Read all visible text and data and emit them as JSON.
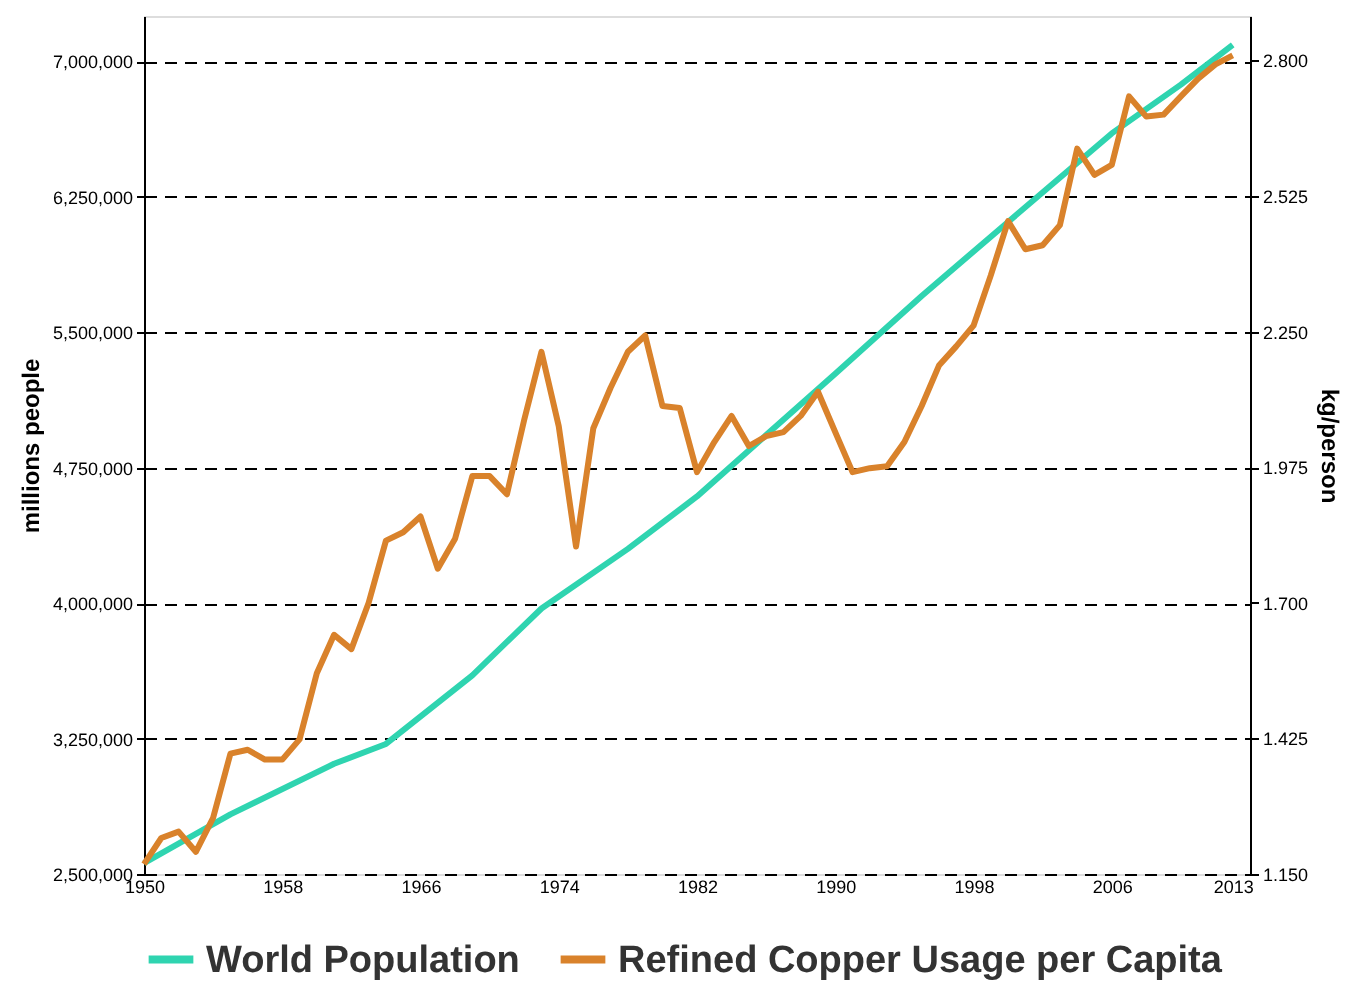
{
  "chart_data": {
    "type": "line",
    "ylabel": "millions people",
    "y2label": "kg/person",
    "xlim": [
      1950,
      2014
    ],
    "xticks": [
      1950,
      1958,
      1966,
      1974,
      1982,
      1990,
      1998,
      2006,
      2013
    ],
    "ylim": [
      2500000,
      7250000
    ],
    "yticks": [
      {
        "value": 2500000,
        "label": "2,500,000"
      },
      {
        "value": 3250000,
        "label": "3,250,000"
      },
      {
        "value": 4000000,
        "label": "4,000,000"
      },
      {
        "value": 4750000,
        "label": "4,750,000"
      },
      {
        "value": 5500000,
        "label": "5,500,000"
      },
      {
        "value": 6250000,
        "label": "6,250,000"
      },
      {
        "value": 7000000,
        "label": "7,000,000"
      }
    ],
    "y2lim": [
      1.15,
      2.89
    ],
    "y2ticks": [
      {
        "value": 1.15,
        "label": "1.150"
      },
      {
        "value": 1.425,
        "label": "1.425"
      },
      {
        "value": 1.7,
        "label": "1.700"
      },
      {
        "value": 1.975,
        "label": "1.975"
      },
      {
        "value": 2.25,
        "label": "2.250"
      },
      {
        "value": 2.525,
        "label": "2.525"
      },
      {
        "value": 2.8,
        "label": "2.800"
      }
    ],
    "grid": "y",
    "line_style": "solid",
    "marker": "none",
    "legend": "bottom",
    "series": [
      {
        "name": "World Population",
        "color": "#2fd4b0",
        "x": [
          1950,
          1955,
          1961,
          1964,
          1969,
          1973,
          1978,
          1982,
          1986,
          1990,
          1995,
          2000,
          2006,
          2010,
          2013
        ],
        "values": [
          2560000,
          2830000,
          3110000,
          3220000,
          3600000,
          3970000,
          4300000,
          4590000,
          4930000,
          5270000,
          5700000,
          6110000,
          6600000,
          6870000,
          7090000
        ]
      },
      {
        "name": "Refined Copper Usage per Capita",
        "color": "#d9822b",
        "axis": "y2",
        "x": [
          1950,
          1951,
          1952,
          1953,
          1954,
          1955,
          1956,
          1957,
          1958,
          1959,
          1960,
          1961,
          1962,
          1963,
          1964,
          1965,
          1966,
          1967,
          1968,
          1969,
          1970,
          1971,
          1972,
          1973,
          1974,
          1975,
          1976,
          1977,
          1978,
          1979,
          1980,
          1981,
          1982,
          1983,
          1984,
          1985,
          1986,
          1987,
          1988,
          1989,
          1990,
          1991,
          1992,
          1993,
          1994,
          1995,
          1996,
          1997,
          1998,
          1999,
          2000,
          2001,
          2002,
          2003,
          2004,
          2005,
          2006,
          2007,
          2008,
          2009,
          2010,
          2011,
          2012,
          2013
        ],
        "values": [
          1.17,
          1.223,
          1.236,
          1.195,
          1.264,
          1.394,
          1.402,
          1.382,
          1.382,
          1.423,
          1.557,
          1.635,
          1.606,
          1.7,
          1.826,
          1.843,
          1.875,
          1.769,
          1.83,
          1.957,
          1.957,
          1.92,
          2.071,
          2.209,
          2.058,
          1.814,
          2.054,
          2.136,
          2.209,
          2.242,
          2.099,
          2.095,
          1.965,
          2.026,
          2.079,
          2.018,
          2.038,
          2.046,
          2.079,
          2.128,
          2.046,
          1.965,
          1.973,
          1.977,
          2.026,
          2.099,
          2.181,
          2.22,
          2.262,
          2.364,
          2.474,
          2.417,
          2.425,
          2.466,
          2.621,
          2.568,
          2.588,
          2.727,
          2.686,
          2.69,
          2.727,
          2.763,
          2.792,
          2.81
        ]
      }
    ]
  }
}
